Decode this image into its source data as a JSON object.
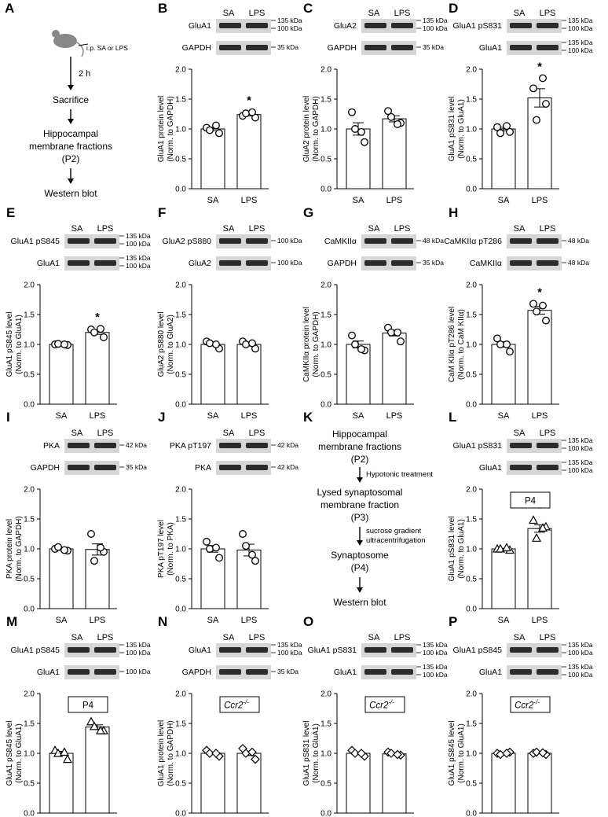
{
  "figure": {
    "common": {
      "xcats": [
        "SA",
        "LPS"
      ],
      "yticks": [
        "0.0",
        "0.5",
        "1.0",
        "1.5",
        "2.0"
      ]
    },
    "flowA": {
      "letter": "A",
      "injection": "i.p. SA or LPS",
      "time": "2 h",
      "steps": [
        "Sacrifice",
        "Hippocampal",
        "membrane fractions",
        "(P2)",
        "Western blot"
      ]
    },
    "flowK": {
      "letter": "K",
      "lines": [
        "Hippocampal",
        "membrane fractions",
        "(P2)",
        "Lysed synaptosomal",
        "membrane fraction",
        "(P3)",
        "Synaptosome",
        "(P4)",
        "Western blot"
      ],
      "treatments": [
        "Hypotonic treatment",
        "sucrose gradient",
        "ultracentrifugation"
      ]
    },
    "panels": [
      {
        "id": "B",
        "letter": "B",
        "rows": [
          "GluA1",
          "GAPDH"
        ],
        "sizes": [
          "135 kDa",
          "100 kDa",
          "35 kDa"
        ],
        "ylabel": [
          "GluA1 protein level",
          "(Norm. to GAPDH)"
        ],
        "tag": "",
        "star": true,
        "sa_points": [
          1.02,
          0.93,
          0.98,
          1.06
        ],
        "lps_points": [
          1.22,
          1.19,
          1.26,
          1.28
        ]
      },
      {
        "id": "C",
        "letter": "C",
        "rows": [
          "GluA2",
          "GAPDH"
        ],
        "sizes": [
          "135 kDa",
          "100 kDa",
          "35 kDa"
        ],
        "ylabel": [
          "GluA2 protein level",
          "(Norm. to GAPDH)"
        ],
        "tag": "",
        "star": false,
        "sa_points": [
          1.28,
          0.78,
          1.0,
          0.95
        ],
        "lps_points": [
          1.3,
          1.1,
          1.2,
          1.08
        ]
      },
      {
        "id": "D",
        "letter": "D",
        "rows": [
          "GluA1 pS831",
          "GluA1"
        ],
        "sizes": [
          "135 kDa",
          "100 kDa",
          "135 kDa",
          "100 kDa"
        ],
        "ylabel": [
          "GluA1 pS831 level",
          "(Norm. to GluA1)"
        ],
        "tag": "",
        "star": true,
        "sa_points": [
          1.03,
          0.95,
          0.93,
          1.05
        ],
        "lps_points": [
          1.68,
          1.42,
          1.15,
          1.85
        ]
      },
      {
        "id": "E",
        "letter": "E",
        "rows": [
          "GluA1 pS845",
          "GluA1"
        ],
        "sizes": [
          "135 kDa",
          "100 kDa",
          "135 kDa",
          "100 kDa"
        ],
        "ylabel": [
          "GluA1 pS845 level",
          "(Norm. to GluA1)"
        ],
        "tag": "",
        "star": true,
        "sa_points": [
          1.0,
          0.99,
          1.01,
          1.0
        ],
        "lps_points": [
          1.25,
          1.12,
          1.2,
          1.26
        ]
      },
      {
        "id": "F",
        "letter": "F",
        "rows": [
          "GluA2 pS880",
          "GluA2"
        ],
        "sizes": [
          "100 kDa",
          "100 kDa"
        ],
        "ylabel": [
          "GluA2 pS880 level",
          "(Norm. to GluA2)"
        ],
        "tag": "",
        "star": false,
        "sa_points": [
          1.05,
          0.93,
          1.02,
          1.0
        ],
        "lps_points": [
          1.05,
          0.93,
          1.0,
          1.02
        ]
      },
      {
        "id": "G",
        "letter": "G",
        "rows": [
          "CaMKIIα",
          "GAPDH"
        ],
        "sizes": [
          "48 kDa",
          "35 kDa"
        ],
        "ylabel": [
          "CaMKIIα protein level",
          "(Norm. to GAPDH)"
        ],
        "tag": "",
        "star": false,
        "sa_points": [
          1.15,
          0.9,
          1.0,
          0.92
        ],
        "lps_points": [
          1.28,
          1.05,
          1.2,
          1.2
        ]
      },
      {
        "id": "H",
        "letter": "H",
        "rows": [
          "CaMKIIα pT286",
          "CaMKIIα"
        ],
        "sizes": [
          "48 kDa",
          "48 kDa"
        ],
        "ylabel": [
          "CaM KIIα pT286 level",
          "(Norm. to CaM KIIα)"
        ],
        "tag": "",
        "star": true,
        "sa_points": [
          1.1,
          0.88,
          1.0,
          1.0
        ],
        "lps_points": [
          1.68,
          1.4,
          1.55,
          1.65
        ]
      },
      {
        "id": "I",
        "letter": "I",
        "rows": [
          "PKA",
          "GAPDH"
        ],
        "sizes": [
          "42 kDa",
          "35 kDa"
        ],
        "ylabel": [
          "PKA protein level",
          "(Norm. to GAPDH)"
        ],
        "tag": "",
        "star": false,
        "sa_points": [
          1.0,
          0.97,
          1.03,
          0.98
        ],
        "lps_points": [
          1.25,
          0.95,
          0.8,
          1.02
        ]
      },
      {
        "id": "J",
        "letter": "J",
        "rows": [
          "PKA pT197",
          "PKA"
        ],
        "sizes": [
          "42 kDa",
          "42 kDa"
        ],
        "ylabel": [
          "PKA pT197 level",
          "(Norm. to PKA)"
        ],
        "tag": "",
        "star": false,
        "sa_points": [
          1.12,
          0.85,
          1.0,
          1.02
        ],
        "lps_points": [
          1.25,
          0.8,
          1.05,
          0.9
        ]
      },
      {
        "id": "L",
        "letter": "L",
        "rows": [
          "GluA1 pS831",
          "GluA1"
        ],
        "sizes": [
          "135 kDa",
          "100 kDa",
          "135 kDa",
          "100 kDa"
        ],
        "ylabel": [
          "GluA1 pS831 level",
          "(Norm. to GluA1)"
        ],
        "tag": "P4",
        "tag_italic": false,
        "star": true,
        "sa_points": [
          1.0,
          0.98,
          1.0,
          1.02
        ],
        "lps_points": [
          1.48,
          1.37,
          1.18,
          1.35
        ]
      },
      {
        "id": "M",
        "letter": "M",
        "rows": [
          "GluA1 pS845",
          "GluA1"
        ],
        "sizes": [
          "135 kDa",
          "100 kDa",
          "100 kDa"
        ],
        "ylabel": [
          "GluA1 pS845 level",
          "(Norm. to GluA1)"
        ],
        "tag": "P4",
        "tag_italic": false,
        "star": true,
        "sa_points": [
          1.05,
          0.9,
          1.0,
          1.02
        ],
        "lps_points": [
          1.53,
          1.38,
          1.45,
          1.38
        ]
      },
      {
        "id": "N",
        "letter": "N",
        "rows": [
          "GluA1",
          "GAPDH"
        ],
        "sizes": [
          "135 kDa",
          "100 kDa",
          "35 kDa"
        ],
        "ylabel": [
          "GluA1 protein level",
          "(Norm. to GAPDH)"
        ],
        "tag": "Ccr2",
        "tag_sup": "-/-",
        "tag_italic": true,
        "star": false,
        "sa_points": [
          1.05,
          0.95,
          1.0,
          1.0
        ],
        "lps_points": [
          1.08,
          0.9,
          1.0,
          1.02
        ]
      },
      {
        "id": "O",
        "letter": "O",
        "rows": [
          "GluA1 pS831",
          "GluA1"
        ],
        "sizes": [
          "135 kDa",
          "100 kDa",
          "135 kDa",
          "100 kDa"
        ],
        "ylabel": [
          "GluA1 pS831 level",
          "(Norm. to GluA1)"
        ],
        "tag": "Ccr2",
        "tag_sup": "-/-",
        "tag_italic": true,
        "star": false,
        "sa_points": [
          1.05,
          0.95,
          1.0,
          1.0
        ],
        "lps_points": [
          1.02,
          0.97,
          1.0,
          0.98
        ]
      },
      {
        "id": "P",
        "letter": "P",
        "rows": [
          "GluA1 pS845",
          "GluA1"
        ],
        "sizes": [
          "135 kDa",
          "100 kDa",
          "135 kDa",
          "100 kDa"
        ],
        "ylabel": [
          "GluA1 pS845 level",
          "(Norm. to GluA1)"
        ],
        "tag": "Ccr2",
        "tag_sup": "-/-",
        "tag_italic": true,
        "star": false,
        "sa_points": [
          1.0,
          1.02,
          0.98,
          1.0
        ],
        "lps_points": [
          1.0,
          0.98,
          1.02,
          1.01
        ]
      }
    ]
  },
  "chart_data": [
    {
      "panel": "B",
      "type": "bar",
      "categories": [
        "SA",
        "LPS"
      ],
      "values": [
        1.0,
        1.24
      ],
      "ylabel": "GluA1 protein level (Norm. to GAPDH)",
      "ylim": [
        0,
        2.0
      ],
      "significance": [
        "",
        "*"
      ]
    },
    {
      "panel": "C",
      "type": "bar",
      "categories": [
        "SA",
        "LPS"
      ],
      "values": [
        1.0,
        1.17
      ],
      "ylabel": "GluA2 protein level (Norm. to GAPDH)",
      "ylim": [
        0,
        2.0
      ],
      "significance": [
        "",
        ""
      ]
    },
    {
      "panel": "D",
      "type": "bar",
      "categories": [
        "SA",
        "LPS"
      ],
      "values": [
        1.0,
        1.52
      ],
      "ylabel": "GluA1 pS831 level (Norm. to GluA1)",
      "ylim": [
        0,
        2.0
      ],
      "significance": [
        "",
        "*"
      ]
    },
    {
      "panel": "E",
      "type": "bar",
      "categories": [
        "SA",
        "LPS"
      ],
      "values": [
        1.0,
        1.2
      ],
      "ylabel": "GluA1 pS845 level (Norm. to GluA1)",
      "ylim": [
        0,
        2.0
      ],
      "significance": [
        "",
        "*"
      ]
    },
    {
      "panel": "F",
      "type": "bar",
      "categories": [
        "SA",
        "LPS"
      ],
      "values": [
        1.0,
        1.0
      ],
      "ylabel": "GluA2 pS880 level (Norm. to GluA2)",
      "ylim": [
        0,
        2.0
      ],
      "significance": [
        "",
        ""
      ]
    },
    {
      "panel": "G",
      "type": "bar",
      "categories": [
        "SA",
        "LPS"
      ],
      "values": [
        1.0,
        1.19
      ],
      "ylabel": "CaMKIIα protein level (Norm. to GAPDH)",
      "ylim": [
        0,
        2.0
      ],
      "significance": [
        "",
        ""
      ]
    },
    {
      "panel": "H",
      "type": "bar",
      "categories": [
        "SA",
        "LPS"
      ],
      "values": [
        1.0,
        1.57
      ],
      "ylabel": "CaM KIIα pT286 level (Norm. to CaM KIIα)",
      "ylim": [
        0,
        2.0
      ],
      "significance": [
        "",
        "*"
      ]
    },
    {
      "panel": "I",
      "type": "bar",
      "categories": [
        "SA",
        "LPS"
      ],
      "values": [
        1.0,
        0.99
      ],
      "ylabel": "PKA protein level (Norm. to GAPDH)",
      "ylim": [
        0,
        2.0
      ],
      "significance": [
        "",
        ""
      ]
    },
    {
      "panel": "J",
      "type": "bar",
      "categories": [
        "SA",
        "LPS"
      ],
      "values": [
        1.0,
        0.98
      ],
      "ylabel": "PKA pT197 level (Norm. to PKA)",
      "ylim": [
        0,
        2.0
      ],
      "significance": [
        "",
        ""
      ]
    },
    {
      "panel": "L",
      "type": "bar",
      "categories": [
        "SA",
        "LPS"
      ],
      "values": [
        1.0,
        1.34
      ],
      "ylabel": "GluA1 pS831 level (Norm. to GluA1)",
      "ylim": [
        0,
        2.0
      ],
      "significance": [
        "",
        "*"
      ]
    },
    {
      "panel": "M",
      "type": "bar",
      "categories": [
        "SA",
        "LPS"
      ],
      "values": [
        1.0,
        1.44
      ],
      "ylabel": "GluA1 pS845 level (Norm. to GluA1)",
      "ylim": [
        0,
        2.0
      ],
      "significance": [
        "",
        "*"
      ]
    },
    {
      "panel": "N",
      "type": "bar",
      "categories": [
        "SA",
        "LPS"
      ],
      "values": [
        1.0,
        1.0
      ],
      "ylabel": "GluA1 protein level (Norm. to GAPDH)",
      "ylim": [
        0,
        2.0
      ],
      "significance": [
        "",
        ""
      ]
    },
    {
      "panel": "O",
      "type": "bar",
      "categories": [
        "SA",
        "LPS"
      ],
      "values": [
        1.0,
        0.99
      ],
      "ylabel": "GluA1 pS831 level (Norm. to GluA1)",
      "ylim": [
        0,
        2.0
      ],
      "significance": [
        "",
        ""
      ]
    },
    {
      "panel": "P",
      "type": "bar",
      "categories": [
        "SA",
        "LPS"
      ],
      "values": [
        1.0,
        1.0
      ],
      "ylabel": "GluA1 pS845 level (Norm. to GluA1)",
      "ylim": [
        0,
        2.0
      ],
      "significance": [
        "",
        ""
      ]
    }
  ]
}
